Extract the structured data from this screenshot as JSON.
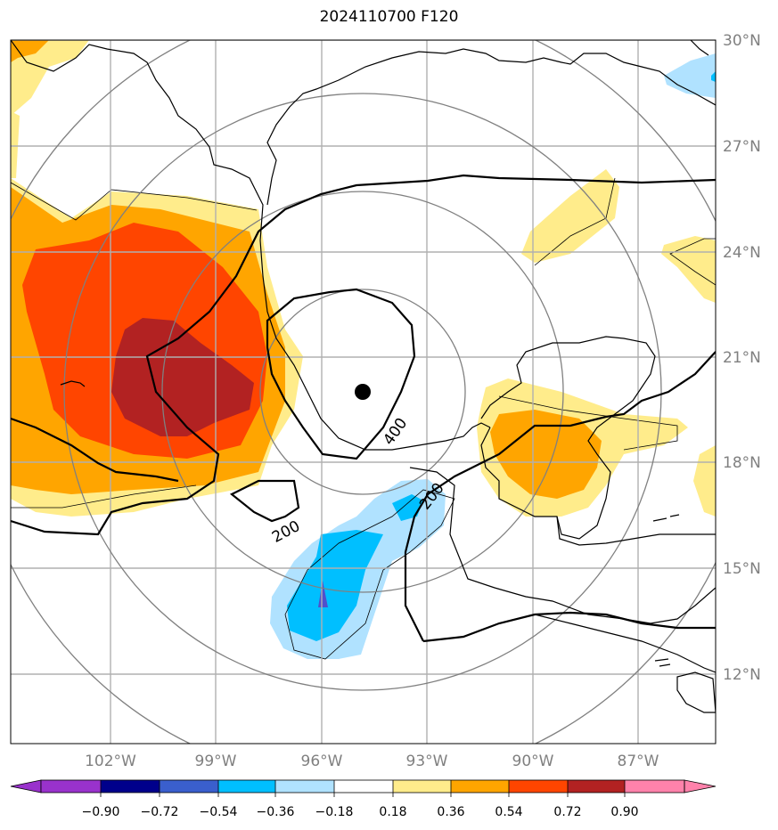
{
  "title": "2024110700 F120",
  "lat_labels": [
    "30°N",
    "27°N",
    "24°N",
    "21°N",
    "18°N",
    "15°N",
    "12°N"
  ],
  "lon_labels": [
    "102°W",
    "99°W",
    "96°W",
    "93°W",
    "90°W",
    "87°W"
  ],
  "colorbar": {
    "ticks": [
      "−0.90",
      "−0.72",
      "−0.54",
      "−0.36",
      "−0.18",
      "0.18",
      "0.36",
      "0.54",
      "0.72",
      "0.90"
    ],
    "colors": [
      "#9932cc",
      "#00008b",
      "#3a5fcd",
      "#00bfff",
      "#b0e2ff",
      "#ffffff",
      "#ffec8b",
      "#ffa500",
      "#ff4500",
      "#b22222",
      "#ff82ab"
    ]
  },
  "contour_labels": [
    "200",
    "400",
    "200"
  ],
  "storm_center": {
    "lat": 20.0,
    "lon": -94.8
  }
}
